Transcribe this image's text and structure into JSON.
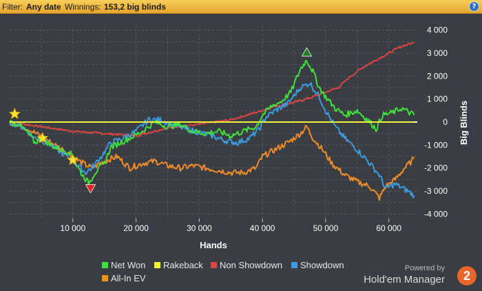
{
  "filter": {
    "prefix": "Filter:",
    "date": "Any date",
    "winnings_label": "Winnings:",
    "winnings_value": "153,2 big blinds",
    "help": "?"
  },
  "branding": {
    "powered": "Powered by",
    "name": "Hold'em Manager",
    "badge": "2"
  },
  "chart_data": {
    "type": "line",
    "xlabel": "Hands",
    "ylabel": "Big Blinds",
    "xlim": [
      0,
      64500
    ],
    "ylim": [
      -4200,
      4200
    ],
    "x_ticks": [
      10000,
      20000,
      30000,
      40000,
      50000,
      60000
    ],
    "x_tick_labels": [
      "10 000",
      "20 000",
      "30 000",
      "40 000",
      "50 000",
      "60 000"
    ],
    "y_ticks": [
      4000,
      3000,
      2000,
      1000,
      0,
      -1000,
      -2000,
      -3000,
      -4000
    ],
    "y_tick_labels": [
      "4 000",
      "3 000",
      "2 000",
      "1 000",
      "0",
      "-1 000",
      "-2 000",
      "-3 000",
      "-4 000"
    ],
    "grid": true,
    "legend_position": "bottom",
    "zero_line_color": "#ffffff",
    "series": [
      {
        "name": "Net Won",
        "color": "#3fe03f",
        "points": [
          [
            0,
            0
          ],
          [
            1500,
            -100
          ],
          [
            3000,
            -500
          ],
          [
            4000,
            -900
          ],
          [
            5000,
            -700
          ],
          [
            6500,
            -1000
          ],
          [
            8000,
            -1200
          ],
          [
            9500,
            -1300
          ],
          [
            10500,
            -1800
          ],
          [
            11500,
            -2300
          ],
          [
            12500,
            -2650
          ],
          [
            13500,
            -2200
          ],
          [
            15000,
            -1800
          ],
          [
            16000,
            -1100
          ],
          [
            17500,
            -900
          ],
          [
            19000,
            -700
          ],
          [
            21000,
            -400
          ],
          [
            23000,
            0
          ],
          [
            25000,
            -200
          ],
          [
            27000,
            -100
          ],
          [
            29000,
            -400
          ],
          [
            31000,
            -500
          ],
          [
            33000,
            -400
          ],
          [
            35000,
            -600
          ],
          [
            37000,
            -400
          ],
          [
            39000,
            -200
          ],
          [
            40000,
            300
          ],
          [
            41500,
            700
          ],
          [
            43000,
            900
          ],
          [
            44500,
            1300
          ],
          [
            46000,
            2300
          ],
          [
            47000,
            2700
          ],
          [
            48000,
            2200
          ],
          [
            49000,
            1500
          ],
          [
            50000,
            1100
          ],
          [
            51500,
            600
          ],
          [
            53000,
            300
          ],
          [
            55000,
            500
          ],
          [
            57000,
            0
          ],
          [
            58000,
            -300
          ],
          [
            59000,
            300
          ],
          [
            60500,
            400
          ],
          [
            62000,
            600
          ],
          [
            64000,
            300
          ]
        ]
      },
      {
        "name": "Rakeback",
        "color": "#f2f23a",
        "points": [
          [
            0,
            0
          ],
          [
            64000,
            0
          ]
        ]
      },
      {
        "name": "Non Showdown",
        "color": "#dd4444",
        "points": [
          [
            0,
            0
          ],
          [
            5000,
            -200
          ],
          [
            10000,
            -400
          ],
          [
            15000,
            -500
          ],
          [
            20000,
            -600
          ],
          [
            25000,
            -250
          ],
          [
            30000,
            -100
          ],
          [
            35000,
            100
          ],
          [
            40000,
            500
          ],
          [
            42000,
            700
          ],
          [
            45000,
            850
          ],
          [
            48000,
            1100
          ],
          [
            50000,
            1300
          ],
          [
            52000,
            1500
          ],
          [
            54000,
            2000
          ],
          [
            56000,
            2400
          ],
          [
            58000,
            2700
          ],
          [
            60000,
            3000
          ],
          [
            62000,
            3300
          ],
          [
            64000,
            3450
          ]
        ]
      },
      {
        "name": "Showdown",
        "color": "#3c9be0",
        "points": [
          [
            0,
            0
          ],
          [
            2000,
            -200
          ],
          [
            4000,
            -700
          ],
          [
            6000,
            -900
          ],
          [
            8000,
            -1300
          ],
          [
            10000,
            -1700
          ],
          [
            12000,
            -2200
          ],
          [
            13000,
            -2000
          ],
          [
            14500,
            -1500
          ],
          [
            16000,
            -900
          ],
          [
            18000,
            -700
          ],
          [
            20000,
            -400
          ],
          [
            22000,
            100
          ],
          [
            24000,
            100
          ],
          [
            26000,
            -150
          ],
          [
            28000,
            -300
          ],
          [
            30000,
            -450
          ],
          [
            32000,
            -600
          ],
          [
            34000,
            -800
          ],
          [
            36000,
            -900
          ],
          [
            38000,
            -700
          ],
          [
            39500,
            -300
          ],
          [
            40500,
            200
          ],
          [
            42000,
            500
          ],
          [
            44000,
            800
          ],
          [
            46000,
            1500
          ],
          [
            47500,
            1700
          ],
          [
            49000,
            1100
          ],
          [
            50000,
            500
          ],
          [
            51500,
            -200
          ],
          [
            53000,
            -700
          ],
          [
            55000,
            -1200
          ],
          [
            57000,
            -1800
          ],
          [
            58500,
            -2300
          ],
          [
            59500,
            -2900
          ],
          [
            61000,
            -2700
          ],
          [
            63000,
            -3000
          ],
          [
            64000,
            -3200
          ]
        ]
      },
      {
        "name": "All-In EV",
        "color": "#f28c28",
        "points": [
          [
            0,
            0
          ],
          [
            3000,
            -300
          ],
          [
            6000,
            -800
          ],
          [
            9000,
            -1300
          ],
          [
            11000,
            -1700
          ],
          [
            13000,
            -2000
          ],
          [
            15000,
            -1700
          ],
          [
            17000,
            -1500
          ],
          [
            19000,
            -2000
          ],
          [
            21000,
            -1800
          ],
          [
            23000,
            -1700
          ],
          [
            25000,
            -1900
          ],
          [
            27000,
            -2000
          ],
          [
            29000,
            -1900
          ],
          [
            31000,
            -2000
          ],
          [
            33000,
            -2100
          ],
          [
            35000,
            -2200
          ],
          [
            37000,
            -2200
          ],
          [
            39000,
            -2000
          ],
          [
            40000,
            -1500
          ],
          [
            42000,
            -1200
          ],
          [
            44000,
            -900
          ],
          [
            46000,
            -500
          ],
          [
            47000,
            -200
          ],
          [
            48000,
            -700
          ],
          [
            49500,
            -1200
          ],
          [
            51000,
            -1800
          ],
          [
            53000,
            -2300
          ],
          [
            55000,
            -2600
          ],
          [
            57000,
            -2800
          ],
          [
            58500,
            -3300
          ],
          [
            59500,
            -2800
          ],
          [
            61000,
            -2500
          ],
          [
            62500,
            -2000
          ],
          [
            64000,
            -1600
          ]
        ]
      }
    ],
    "markers": [
      {
        "name": "star",
        "x": 800,
        "y": 350,
        "color": "#ffe135"
      },
      {
        "name": "star",
        "x": 5200,
        "y": -700,
        "color": "#ffe135"
      },
      {
        "name": "star",
        "x": 10000,
        "y": -1650,
        "color": "#ffe135"
      },
      {
        "name": "down-triangle",
        "x": 12800,
        "y": -2900,
        "color": "#dd2222"
      },
      {
        "name": "up-triangle",
        "x": 47000,
        "y": 3050,
        "color": "#1e7a1e"
      }
    ]
  }
}
